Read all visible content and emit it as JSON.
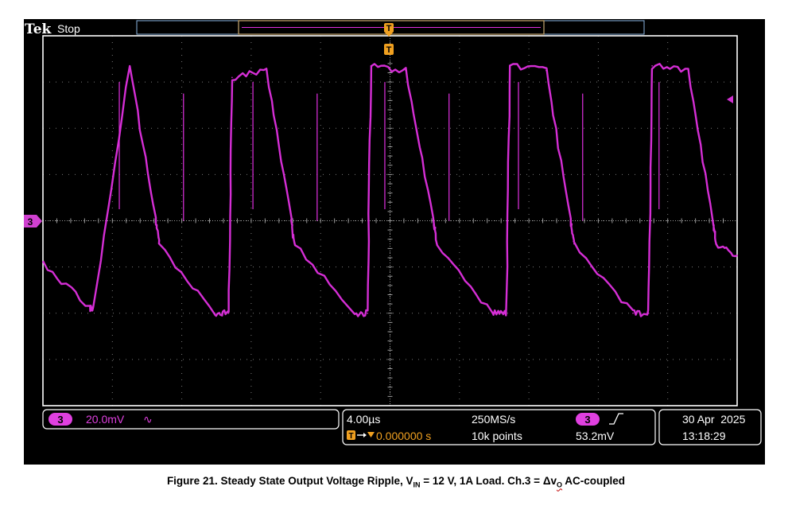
{
  "header": {
    "brand": "Tek",
    "acq_state": "Stop",
    "trigger_marker": "T"
  },
  "channel_marker": "3",
  "status": {
    "channel": {
      "number": "3",
      "scale": "20.0mV",
      "coupling_symbol": "∿"
    },
    "horizontal": {
      "time_per_div": "4.00µs",
      "sample_rate": "250MS/s",
      "trigger_position": "0.000000 s",
      "record_length": "10k points"
    },
    "trigger": {
      "source": "3",
      "slope_symbol": "∫",
      "level": "53.2mV"
    },
    "datetime": {
      "date": "30 Apr  2025",
      "time": "13:18:29"
    }
  },
  "caption": {
    "prefix": "Figure 21. Steady State Output Voltage Ripple, V",
    "vin_sub": "IN",
    "mid": " = 12 V, 1A Load. Ch.3 = Δv",
    "vo_sub": "O",
    "suffix": " AC-coupled"
  },
  "colors": {
    "trace": "#e030e0",
    "grid": "#7a7a7a",
    "bezel": "#ffffff",
    "trigger": "#f0a020",
    "panel_border": "#8ab4e0"
  },
  "chart_data": {
    "type": "line",
    "xlabel": "",
    "ylabel": "",
    "x_unit": "µs",
    "y_unit": "mV",
    "x_per_div": 4.0,
    "y_per_div": 20.0,
    "xlim": [
      -20,
      20
    ],
    "ylim": [
      -80,
      80
    ],
    "grid": true,
    "series": [
      {
        "x": [
          -20.0,
          -17.3,
          -17.1,
          -15.0,
          -13.5,
          -13.3,
          -10.1,
          -9.3,
          -9.1,
          -7.1,
          -5.7,
          -5.5,
          -2.1,
          -1.3,
          -1.1,
          0.9,
          2.5,
          2.7,
          5.9,
          6.7,
          6.9,
          9.0,
          10.4,
          10.6,
          14.0,
          14.9,
          15.1,
          17.2,
          18.6,
          18.8,
          20.0
        ],
        "y": [
          -18,
          -38,
          -38,
          67,
          0,
          -10,
          -40,
          -40,
          62,
          65,
          0,
          -10,
          -40,
          -40,
          67,
          65,
          0,
          -10,
          -40,
          -40,
          67,
          65,
          0,
          -10,
          -40,
          -40,
          67,
          65,
          0,
          -10,
          -15
        ]
      }
    ]
  }
}
